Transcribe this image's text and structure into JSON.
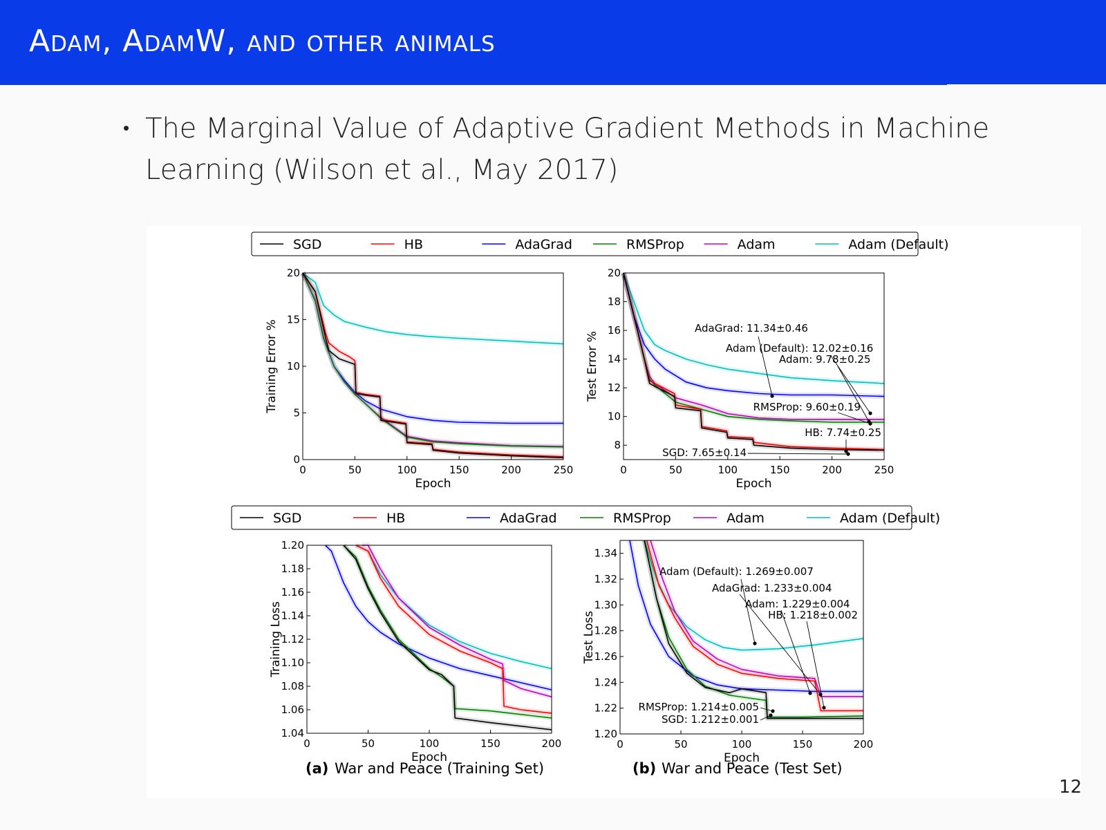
{
  "slide": {
    "title": "Adam, AdamW, and other animals",
    "bullet": "The Marginal Value of Adaptive Gradient Methods in Machine Learning (Wilson et al., May 2017)",
    "page_number": "12"
  },
  "colors": {
    "header": "#0a3be8",
    "SGD": "#000000",
    "HB": "#ff0000",
    "AdaGrad": "#0000ff",
    "RMSProp": "#008000",
    "Adam": "#bf00bf",
    "Adam (Default)": "#00bfbf"
  },
  "legend": [
    "SGD",
    "HB",
    "AdaGrad",
    "RMSProp",
    "Adam",
    "Adam (Default)"
  ],
  "captions": {
    "a_label": "(a)",
    "a_text": "War and Peace (Training Set)",
    "b_label": "(b)",
    "b_text": "War and Peace (Test Set)"
  },
  "chart_data": [
    {
      "id": "train_error",
      "type": "line",
      "xlabel": "Epoch",
      "ylabel": "Training Error %",
      "xlim": [
        0,
        250
      ],
      "ylim": [
        0,
        20
      ],
      "xticks": [
        0,
        50,
        100,
        150,
        200,
        250
      ],
      "yticks": [
        0,
        5,
        10,
        15,
        20
      ],
      "series": [
        {
          "name": "Adam (Default)",
          "x": [
            0,
            12,
            20,
            30,
            40,
            60,
            80,
            100,
            120,
            150,
            200,
            250
          ],
          "y": [
            23,
            19,
            16.5,
            15.5,
            14.8,
            14.2,
            13.7,
            13.4,
            13.2,
            13.0,
            12.7,
            12.4
          ]
        },
        {
          "name": "AdaGrad",
          "x": [
            0,
            12,
            20,
            30,
            40,
            50,
            60,
            75,
            100,
            125,
            150,
            200,
            250
          ],
          "y": [
            23,
            17,
            13,
            10,
            8.5,
            7.2,
            6.3,
            5.4,
            4.6,
            4.2,
            4.0,
            3.9,
            3.9
          ]
        },
        {
          "name": "Adam",
          "x": [
            0,
            12,
            20,
            30,
            40,
            50,
            60,
            75,
            100,
            125,
            150,
            200,
            250
          ],
          "y": [
            23,
            17,
            13,
            10,
            8.3,
            7.0,
            6.0,
            4.5,
            2.5,
            2.0,
            1.8,
            1.5,
            1.4
          ]
        },
        {
          "name": "RMSProp",
          "x": [
            0,
            12,
            20,
            30,
            40,
            50,
            60,
            75,
            100,
            125,
            150,
            200,
            250
          ],
          "y": [
            23,
            17,
            13,
            10,
            8.3,
            7.0,
            6.0,
            4.4,
            2.4,
            1.9,
            1.7,
            1.45,
            1.35
          ]
        },
        {
          "name": "HB",
          "x": [
            0,
            12,
            22,
            25,
            35,
            45,
            50,
            51,
            60,
            74,
            75,
            99,
            100,
            124,
            125,
            150,
            200,
            250
          ],
          "y": [
            23,
            18,
            13.5,
            12.5,
            11.6,
            11,
            10.6,
            7.2,
            7.0,
            6.8,
            4.3,
            3.9,
            1.9,
            1.7,
            1.1,
            0.8,
            0.5,
            0.3
          ]
        },
        {
          "name": "SGD",
          "x": [
            0,
            12,
            22,
            25,
            35,
            45,
            50,
            51,
            60,
            74,
            75,
            99,
            100,
            124,
            125,
            150,
            200,
            250
          ],
          "y": [
            23,
            18,
            13,
            11.7,
            10.8,
            10.4,
            10.2,
            7.1,
            6.9,
            6.7,
            4.2,
            3.8,
            1.8,
            1.6,
            1.0,
            0.7,
            0.4,
            0.2
          ]
        }
      ]
    },
    {
      "id": "test_error",
      "type": "line",
      "xlabel": "Epoch",
      "ylabel": "Test Error %",
      "xlim": [
        0,
        250
      ],
      "ylim": [
        7,
        20
      ],
      "xticks": [
        0,
        50,
        100,
        150,
        200,
        250
      ],
      "yticks": [
        8,
        10,
        12,
        14,
        16,
        18,
        20
      ],
      "series": [
        {
          "name": "Adam (Default)",
          "x": [
            0,
            10,
            20,
            30,
            40,
            60,
            80,
            100,
            130,
            160,
            200,
            250
          ],
          "y": [
            22,
            18,
            16,
            15,
            14.6,
            14,
            13.6,
            13.3,
            13.0,
            12.7,
            12.5,
            12.3
          ]
        },
        {
          "name": "AdaGrad",
          "x": [
            0,
            10,
            20,
            30,
            40,
            60,
            80,
            100,
            130,
            160,
            200,
            250
          ],
          "y": [
            22,
            17,
            15,
            14,
            13.3,
            12.4,
            12.0,
            11.8,
            11.6,
            11.5,
            11.5,
            11.4
          ]
        },
        {
          "name": "Adam",
          "x": [
            0,
            10,
            20,
            25,
            30,
            50,
            75,
            100,
            130,
            160,
            200,
            250
          ],
          "y": [
            22,
            17,
            14,
            12.8,
            12.3,
            11.3,
            10.8,
            10.2,
            9.9,
            9.8,
            9.8,
            9.8
          ]
        },
        {
          "name": "RMSProp",
          "x": [
            0,
            10,
            20,
            25,
            30,
            50,
            75,
            100,
            130,
            160,
            200,
            250
          ],
          "y": [
            22,
            17,
            14,
            12.6,
            12.2,
            11.0,
            10.5,
            10.0,
            9.8,
            9.7,
            9.6,
            9.6
          ]
        },
        {
          "name": "HB",
          "x": [
            0,
            10,
            20,
            25,
            30,
            49,
            50,
            74,
            75,
            99,
            100,
            124,
            125,
            160,
            200,
            250
          ],
          "y": [
            22,
            17,
            14,
            12.5,
            12.3,
            11.6,
            10.8,
            10.5,
            9.3,
            9.0,
            8.6,
            8.5,
            8.2,
            7.9,
            7.8,
            7.7
          ]
        },
        {
          "name": "SGD",
          "x": [
            0,
            10,
            20,
            25,
            30,
            49,
            50,
            74,
            75,
            99,
            100,
            124,
            125,
            160,
            200,
            250
          ],
          "y": [
            22,
            17,
            14,
            12.3,
            12.1,
            11.4,
            10.6,
            10.4,
            9.2,
            8.9,
            8.5,
            8.4,
            8.0,
            7.8,
            7.7,
            7.65
          ]
        }
      ],
      "annotations": [
        "AdaGrad: 11.34±0.46",
        "Adam (Default): 12.02±0.16",
        "Adam: 9.78±0.25",
        "RMSProp: 9.60±0.19",
        "HB: 7.74±0.25",
        "SGD: 7.65±0.14"
      ]
    },
    {
      "id": "train_loss",
      "type": "line",
      "xlabel": "Epoch",
      "ylabel": "Training Loss",
      "xlim": [
        0,
        200
      ],
      "ylim": [
        1.04,
        1.2
      ],
      "xticks": [
        0,
        50,
        100,
        150,
        200
      ],
      "yticks": [
        1.04,
        1.06,
        1.08,
        1.1,
        1.12,
        1.14,
        1.16,
        1.18,
        1.2
      ],
      "series": [
        {
          "name": "AdaGrad",
          "x": [
            15,
            20,
            30,
            40,
            50,
            60,
            75,
            100,
            125,
            150,
            175,
            200
          ],
          "y": [
            1.22,
            1.195,
            1.168,
            1.148,
            1.135,
            1.126,
            1.116,
            1.104,
            1.095,
            1.089,
            1.083,
            1.077
          ]
        },
        {
          "name": "Adam (Default)",
          "x": [
            40,
            50,
            60,
            75,
            100,
            125,
            150,
            175,
            200
          ],
          "y": [
            1.22,
            1.195,
            1.175,
            1.155,
            1.132,
            1.118,
            1.108,
            1.101,
            1.095
          ]
        },
        {
          "name": "Adam",
          "x": [
            45,
            50,
            60,
            75,
            100,
            125,
            150,
            160,
            161,
            175,
            200
          ],
          "y": [
            1.22,
            1.205,
            1.18,
            1.155,
            1.13,
            1.115,
            1.103,
            1.099,
            1.085,
            1.078,
            1.071
          ]
        },
        {
          "name": "HB",
          "x": [
            40,
            50,
            60,
            75,
            100,
            125,
            150,
            160,
            161,
            175,
            200
          ],
          "y": [
            1.22,
            1.195,
            1.172,
            1.148,
            1.124,
            1.11,
            1.1,
            1.095,
            1.063,
            1.06,
            1.057
          ]
        },
        {
          "name": "RMSProp",
          "x": [
            30,
            40,
            50,
            60,
            75,
            100,
            110,
            120,
            121,
            150,
            175,
            200
          ],
          "y": [
            1.22,
            1.19,
            1.165,
            1.145,
            1.12,
            1.095,
            1.088,
            1.08,
            1.061,
            1.059,
            1.056,
            1.053
          ]
        },
        {
          "name": "SGD",
          "x": [
            30,
            40,
            50,
            60,
            75,
            100,
            110,
            120,
            121,
            150,
            175,
            200
          ],
          "y": [
            1.22,
            1.188,
            1.163,
            1.143,
            1.118,
            1.094,
            1.09,
            1.08,
            1.053,
            1.049,
            1.046,
            1.043
          ]
        }
      ]
    },
    {
      "id": "test_loss",
      "type": "line",
      "xlabel": "Epoch",
      "ylabel": "Test Loss",
      "xlim": [
        0,
        200
      ],
      "ylim": [
        1.2,
        1.35
      ],
      "xticks": [
        0,
        50,
        100,
        150,
        200
      ],
      "yticks": [
        1.2,
        1.22,
        1.24,
        1.26,
        1.28,
        1.3,
        1.32,
        1.34
      ],
      "series": [
        {
          "name": "AdaGrad",
          "x": [
            8,
            15,
            25,
            40,
            60,
            80,
            100,
            130,
            160,
            200
          ],
          "y": [
            1.36,
            1.315,
            1.285,
            1.26,
            1.245,
            1.238,
            1.235,
            1.234,
            1.233,
            1.233
          ]
        },
        {
          "name": "Adam (Default)",
          "x": [
            20,
            30,
            40,
            55,
            70,
            85,
            100,
            130,
            160,
            200
          ],
          "y": [
            1.36,
            1.32,
            1.3,
            1.283,
            1.273,
            1.267,
            1.265,
            1.266,
            1.269,
            1.274
          ]
        },
        {
          "name": "Adam",
          "x": [
            25,
            35,
            45,
            60,
            80,
            100,
            130,
            160,
            165,
            200
          ],
          "y": [
            1.36,
            1.32,
            1.295,
            1.272,
            1.258,
            1.25,
            1.245,
            1.243,
            1.229,
            1.229
          ]
        },
        {
          "name": "HB",
          "x": [
            22,
            32,
            45,
            60,
            80,
            100,
            130,
            160,
            165,
            200
          ],
          "y": [
            1.36,
            1.315,
            1.29,
            1.268,
            1.254,
            1.247,
            1.243,
            1.241,
            1.218,
            1.218
          ]
        },
        {
          "name": "RMSProp",
          "x": [
            20,
            30,
            40,
            55,
            70,
            90,
            120,
            121,
            150,
            200
          ],
          "y": [
            1.36,
            1.305,
            1.275,
            1.25,
            1.237,
            1.23,
            1.226,
            1.213,
            1.213,
            1.214
          ]
        },
        {
          "name": "SGD",
          "x": [
            20,
            30,
            40,
            55,
            70,
            90,
            100,
            120,
            121,
            150,
            200
          ],
          "y": [
            1.36,
            1.305,
            1.27,
            1.247,
            1.236,
            1.232,
            1.235,
            1.232,
            1.212,
            1.212,
            1.212
          ]
        }
      ],
      "annotations": [
        "Adam (Default): 1.269±0.007",
        "AdaGrad: 1.233±0.004",
        "Adam: 1.229±0.004",
        "HB: 1.218±0.002",
        "RMSProp: 1.214±0.005",
        "SGD: 1.212±0.001"
      ]
    }
  ]
}
